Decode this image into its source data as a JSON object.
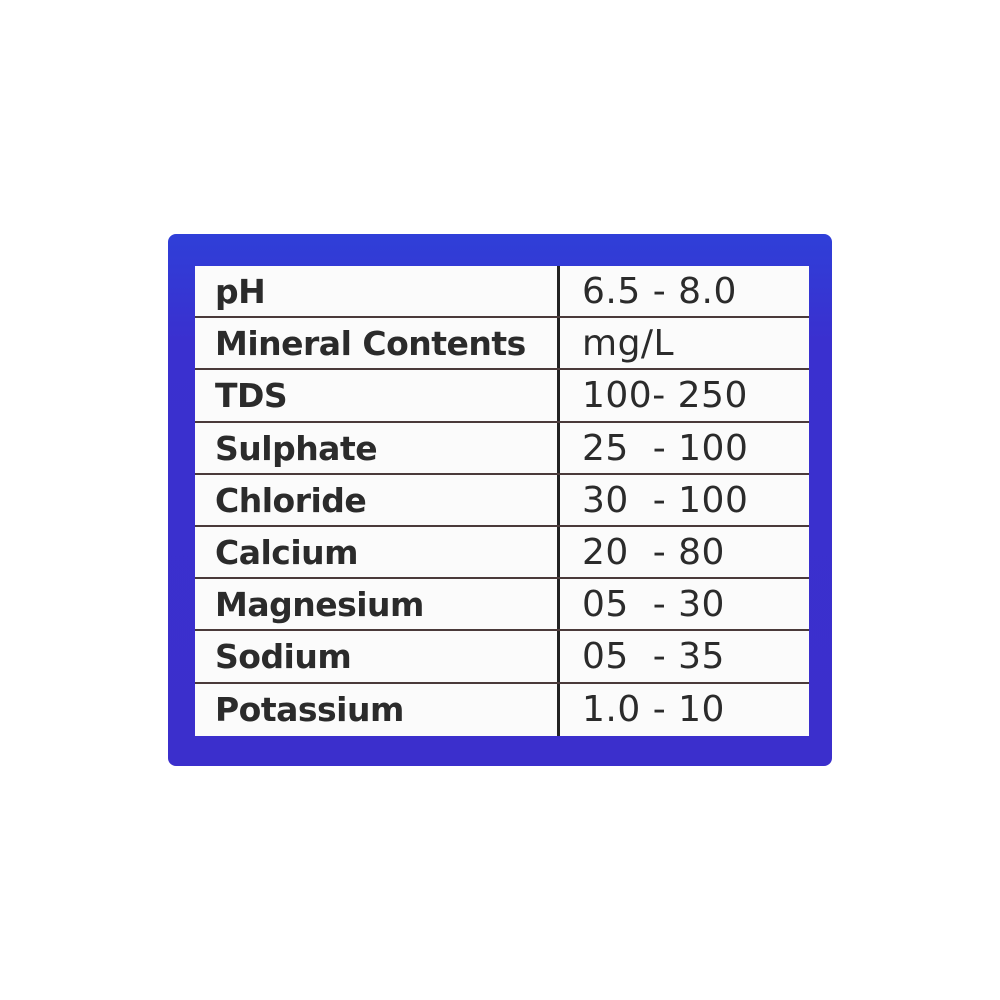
{
  "label": {
    "border_color": "#3a30cf",
    "rows": [
      {
        "name": "pH",
        "value": "6.5 - 8.0"
      },
      {
        "name": "Mineral Contents",
        "value": "mg/L"
      },
      {
        "name": "TDS",
        "value": "100- 250"
      },
      {
        "name": "Sulphate",
        "value": "25  - 100"
      },
      {
        "name": "Chloride",
        "value": "30  - 100"
      },
      {
        "name": "Calcium",
        "value": "20  - 80"
      },
      {
        "name": "Magnesium",
        "value": "05  - 30"
      },
      {
        "name": "Sodium",
        "value": "05  - 35"
      },
      {
        "name": "Potassium",
        "value": "1.0 - 10"
      }
    ]
  }
}
